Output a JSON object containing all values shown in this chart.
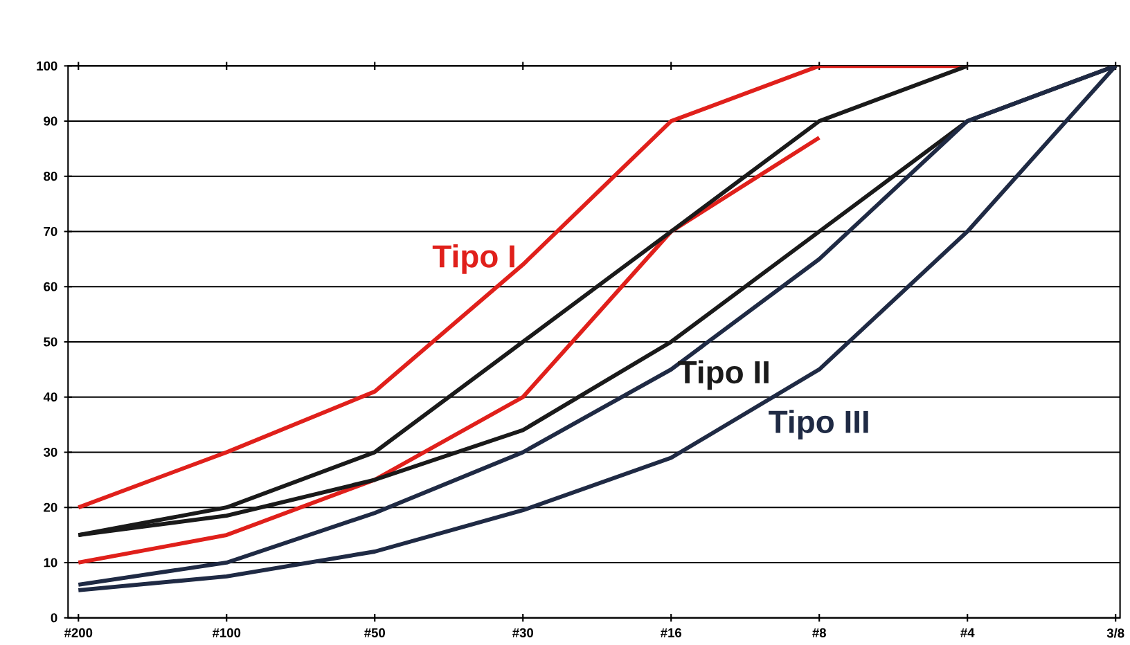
{
  "chart_data": {
    "type": "line",
    "categories": [
      "#200",
      "#100",
      "#50",
      "#30",
      "#16",
      "#8",
      "#4",
      "3/8"
    ],
    "series": [
      {
        "color": "#e0201b",
        "values": [
          20,
          30,
          41,
          64,
          90,
          100,
          100,
          null
        ]
      },
      {
        "color": "#e0201b",
        "values": [
          10,
          15,
          25,
          40,
          70,
          87,
          null,
          null
        ]
      },
      {
        "color": "#1a1a1a",
        "values": [
          15,
          20,
          30,
          50,
          70,
          90,
          100,
          null
        ]
      },
      {
        "color": "#1a1a1a",
        "values": [
          15,
          18.5,
          25,
          34,
          50,
          70,
          90,
          100
        ]
      },
      {
        "color": "#1f2a44",
        "values": [
          6,
          10,
          19,
          30,
          45,
          65,
          90,
          100
        ]
      },
      {
        "color": "#1f2a44",
        "values": [
          5,
          7.5,
          12,
          19.5,
          29,
          45,
          70,
          100
        ]
      }
    ],
    "ylim": [
      0,
      100
    ],
    "yticks": [
      0,
      10,
      20,
      30,
      40,
      50,
      60,
      70,
      80,
      90,
      100
    ],
    "grid": "y",
    "marker": "none",
    "line_style": "solid",
    "annotations": [
      "Tipo I",
      "Tipo II",
      "Tipo III"
    ]
  }
}
